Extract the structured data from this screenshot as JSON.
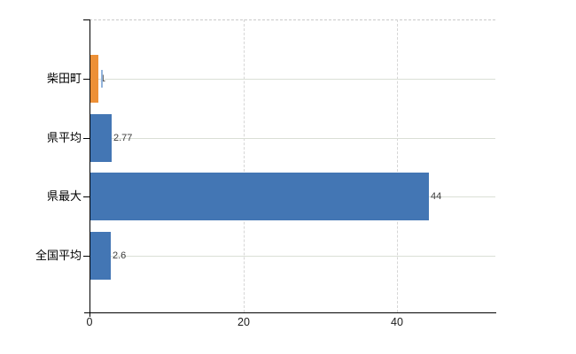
{
  "chart_data": {
    "type": "bar",
    "orientation": "horizontal",
    "categories": [
      "柴田町",
      "県平均",
      "県最大",
      "全国平均"
    ],
    "values": [
      1,
      2.77,
      44,
      2.6
    ],
    "value_labels": [
      "1",
      "2.77",
      "44",
      "2.6"
    ],
    "bar_colors": [
      "#ed9036",
      "#4376b4",
      "#4376b4",
      "#4376b4"
    ],
    "title": "",
    "xlabel": "",
    "ylabel": "",
    "xticks": [
      "0",
      "20",
      "40"
    ],
    "xtick_values": [
      0,
      20,
      40
    ],
    "xlim": [
      0,
      52.8
    ],
    "grid": "on",
    "legend": "none",
    "accent_orange": "#ed9036",
    "accent_blue": "#4376b4",
    "gridline_color": "#d9d9d9",
    "axis_color": "#000000"
  }
}
